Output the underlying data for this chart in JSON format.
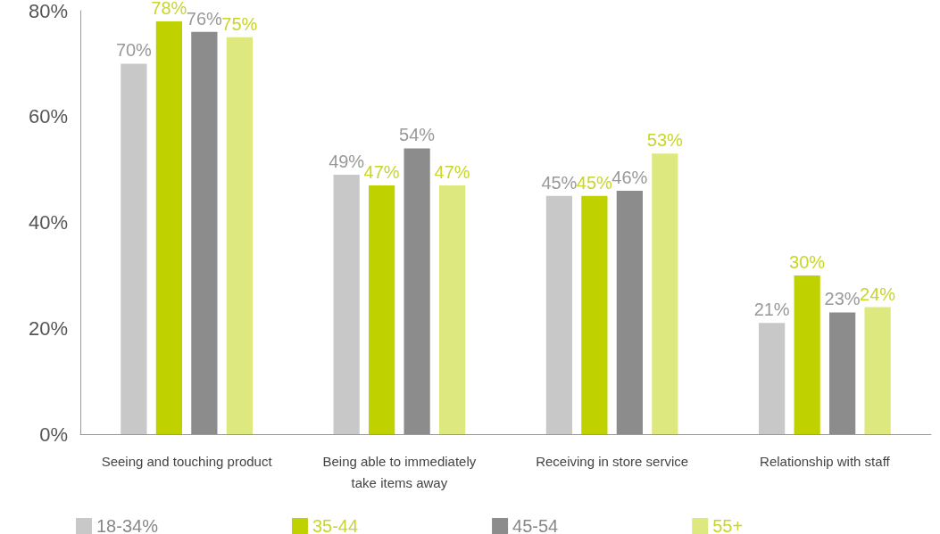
{
  "chart_data": {
    "type": "bar",
    "categories": [
      "Seeing and touching product",
      "Being able to immediately\ntake items away",
      "Receiving in store service",
      "Relationship with staff"
    ],
    "series": [
      {
        "name": "18-34%",
        "color": "#c8c8c8",
        "values": [
          70,
          49,
          45,
          21
        ],
        "value_labels": [
          "70%",
          "49%",
          "45%",
          "21%"
        ]
      },
      {
        "name": "35-44",
        "color": "#bfd200",
        "values": [
          78,
          47,
          45,
          30
        ],
        "value_labels": [
          "78%",
          "47%",
          "45%",
          "30%"
        ]
      },
      {
        "name": "45-54",
        "color": "#8c8c8c",
        "values": [
          76,
          54,
          46,
          23
        ],
        "value_labels": [
          "76%",
          "54%",
          "46%",
          "23%"
        ]
      },
      {
        "name": "55+",
        "color": "#dde87f",
        "values": [
          75,
          47,
          53,
          24
        ],
        "value_labels": [
          "75%",
          "47%",
          "53%",
          "24%"
        ]
      }
    ],
    "ylim": [
      0,
      80
    ],
    "yticks": [
      {
        "value": 0,
        "label": "0%"
      },
      {
        "value": 20,
        "label": "20%"
      },
      {
        "value": 40,
        "label": "40%"
      },
      {
        "value": 60,
        "label": "60%"
      },
      {
        "value": 80,
        "label": "80%"
      }
    ],
    "grid": false,
    "legend": "bottom"
  }
}
